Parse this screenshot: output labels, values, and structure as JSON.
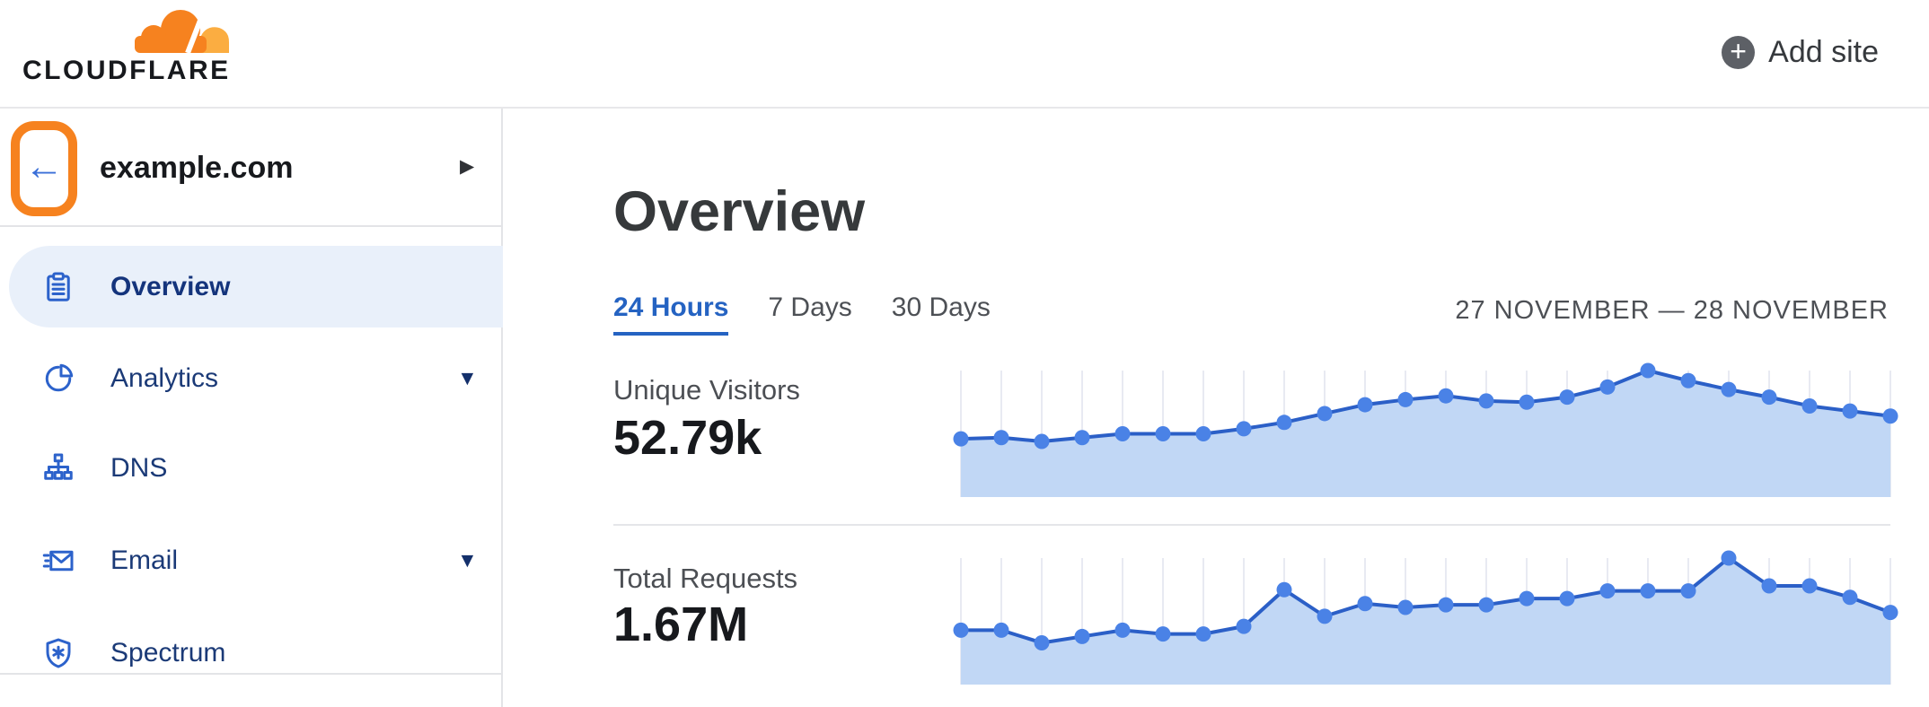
{
  "header": {
    "logo_text": "CLOUDFLARE",
    "add_site_label": "Add site"
  },
  "icons": {
    "plus": "+",
    "back_arrow": "←",
    "chevron_right": "▶",
    "chevron_down": "▼"
  },
  "sidebar": {
    "zone_name": "example.com",
    "items": [
      {
        "label": "Overview",
        "icon": "clipboard-icon",
        "active": true,
        "caret": false
      },
      {
        "label": "Analytics",
        "icon": "pie-chart-icon",
        "active": false,
        "caret": true
      },
      {
        "label": "DNS",
        "icon": "sitemap-icon",
        "active": false,
        "caret": false
      },
      {
        "label": "Email",
        "icon": "envelope-icon",
        "active": false,
        "caret": true
      },
      {
        "label": "Spectrum",
        "icon": "shield-icon",
        "active": false,
        "caret": false
      }
    ]
  },
  "main": {
    "title": "Overview",
    "tabs": [
      {
        "label": "24 Hours",
        "active": true
      },
      {
        "label": "7 Days",
        "active": false
      },
      {
        "label": "30 Days",
        "active": false
      }
    ],
    "date_range": "27 NOVEMBER — 28 NOVEMBER",
    "metrics": [
      {
        "label": "Unique Visitors",
        "value": "52.79k"
      },
      {
        "label": "Total Requests",
        "value": "1.67M"
      }
    ]
  },
  "colors": {
    "brand_orange": "#f6821f",
    "brand_orange_light": "#fbad41",
    "accent_blue": "#2563c2",
    "chart_line": "#2b5fc7",
    "chart_dot": "#4a82e6",
    "chart_fill": "#c1d7f5",
    "chart_gridline": "#e8eaf2",
    "sidebar_active_bg": "#e9f0fa",
    "sidebar_text": "#1b3a77",
    "icon_blue": "#2c62cb"
  },
  "chart_data": [
    {
      "type": "area",
      "title": "Unique Visitors",
      "total": "52.79k",
      "period": "24 Hours (27 November — 28 November)",
      "points": 24,
      "note": "Hourly sparkline; axes unlabeled, values are relative heights (peak = 1.0)",
      "values": [
        0.46,
        0.47,
        0.44,
        0.47,
        0.5,
        0.5,
        0.5,
        0.54,
        0.59,
        0.66,
        0.73,
        0.77,
        0.8,
        0.76,
        0.75,
        0.79,
        0.87,
        1.0,
        0.92,
        0.85,
        0.79,
        0.72,
        0.68,
        0.64
      ],
      "grid": "vertical gridlines at each point",
      "legend": "none"
    },
    {
      "type": "area",
      "title": "Total Requests",
      "total": "1.67M",
      "period": "24 Hours (27 November — 28 November)",
      "points": 24,
      "note": "Hourly sparkline; axes unlabeled, values are relative heights (peak = 1.0)",
      "values": [
        0.43,
        0.43,
        0.33,
        0.38,
        0.43,
        0.4,
        0.4,
        0.46,
        0.75,
        0.54,
        0.64,
        0.61,
        0.63,
        0.63,
        0.68,
        0.68,
        0.74,
        0.74,
        0.74,
        1.0,
        0.78,
        0.78,
        0.69,
        0.57
      ],
      "grid": "vertical gridlines at each point",
      "legend": "none"
    }
  ]
}
